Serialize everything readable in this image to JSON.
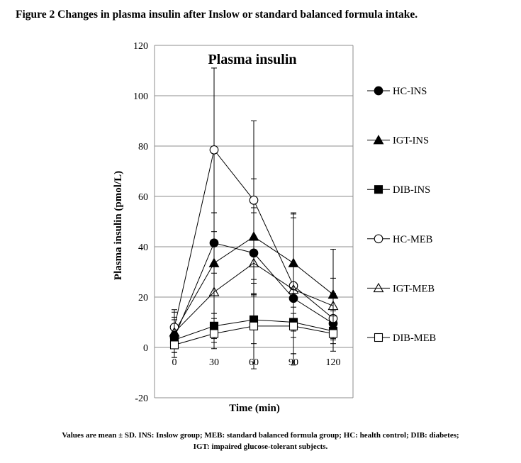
{
  "figure_title": "Figure 2 Changes in plasma insulin after Inslow or standard balanced formula intake.",
  "caption": {
    "line1": "Values are mean ± SD. INS: Inslow group; MEB: standard balanced formula group; HC: health control; DIB: diabetes;",
    "line2": "IGT: impaired glucose-tolerant subjects."
  },
  "chart_data": {
    "type": "line",
    "title": "Plasma insulin",
    "xlabel": "Time (min)",
    "ylabel": "Plasma insulin (pmol/L)",
    "x": [
      0,
      30,
      60,
      90,
      120
    ],
    "x_ticks": [
      "0",
      "30",
      "60",
      "90",
      "120"
    ],
    "xlim": [
      -15,
      135
    ],
    "ylim": [
      -20,
      120
    ],
    "y_ticks": [
      "-20",
      "0",
      "20",
      "40",
      "60",
      "80",
      "100",
      "120"
    ],
    "y_tick_values": [
      -20,
      0,
      20,
      40,
      60,
      80,
      100,
      120
    ],
    "grid": "horizontal",
    "legend_position": "right",
    "series": [
      {
        "name": "HC-INS",
        "marker": "circle",
        "filled": true,
        "values": [
          4,
          41.5,
          37.5,
          19.5,
          9.5
        ],
        "sd": [
          8,
          12,
          16,
          13,
          5
        ]
      },
      {
        "name": "IGT-INS",
        "marker": "triangle",
        "filled": true,
        "values": [
          6,
          33.5,
          44,
          33.5,
          21
        ],
        "sd": [
          8,
          20,
          23,
          20,
          18
        ]
      },
      {
        "name": "DIB-INS",
        "marker": "square",
        "filled": true,
        "values": [
          3,
          8.5,
          11,
          10,
          6.5
        ],
        "sd": [
          5,
          5,
          9.5,
          6,
          3
        ]
      },
      {
        "name": "HC-MEB",
        "marker": "circle",
        "filled": false,
        "values": [
          8,
          78.5,
          58.5,
          24.5,
          11.5
        ],
        "sd": [
          7,
          32.5,
          31.5,
          27,
          10
        ]
      },
      {
        "name": "IGT-MEB",
        "marker": "triangle",
        "filled": false,
        "values": [
          6,
          22,
          33.5,
          23,
          16.5
        ],
        "sd": [
          5,
          20,
          22,
          30,
          11
        ]
      },
      {
        "name": "DIB-MEB",
        "marker": "square",
        "filled": false,
        "values": [
          1,
          5.5,
          8.5,
          8.5,
          5.5
        ],
        "sd": [
          3,
          6,
          17,
          11,
          7
        ]
      }
    ]
  }
}
